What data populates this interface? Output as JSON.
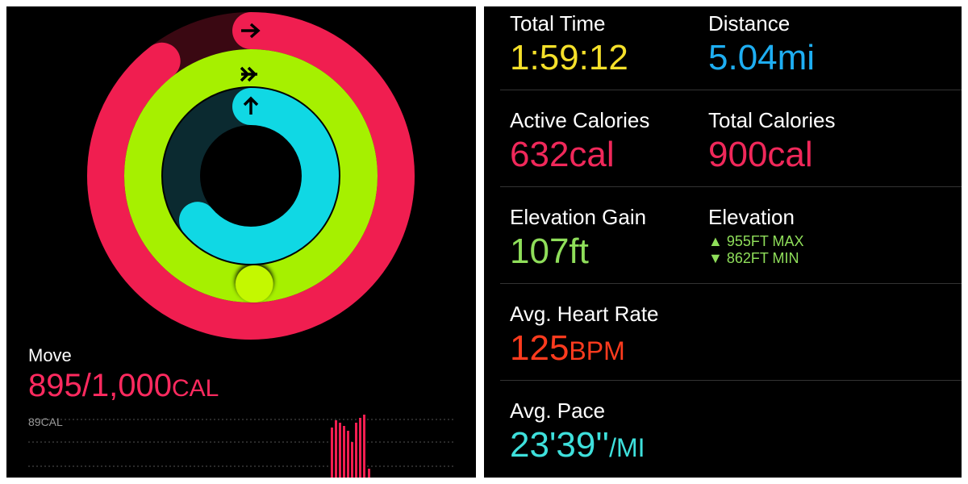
{
  "move": {
    "label": "Move",
    "value": "895/1,000",
    "unit": "CAL",
    "chart_label": "89CAL"
  },
  "metrics": {
    "total_time": {
      "label": "Total Time",
      "value": "1:59:12"
    },
    "distance": {
      "label": "Distance",
      "value": "5.04mi"
    },
    "active_calories": {
      "label": "Active Calories",
      "value": "632cal"
    },
    "total_calories": {
      "label": "Total Calories",
      "value": "900cal"
    },
    "elevation_gain": {
      "label": "Elevation Gain",
      "value": "107ft"
    },
    "elevation": {
      "label": "Elevation",
      "max": "▲ 955FT MAX",
      "min": "▼ 862FT MIN"
    },
    "heart_rate": {
      "label": "Avg. Heart Rate",
      "value": "125",
      "unit": "BPM"
    },
    "pace": {
      "label": "Avg. Pace",
      "value": "23'39''",
      "unit": "/MI"
    }
  }
}
